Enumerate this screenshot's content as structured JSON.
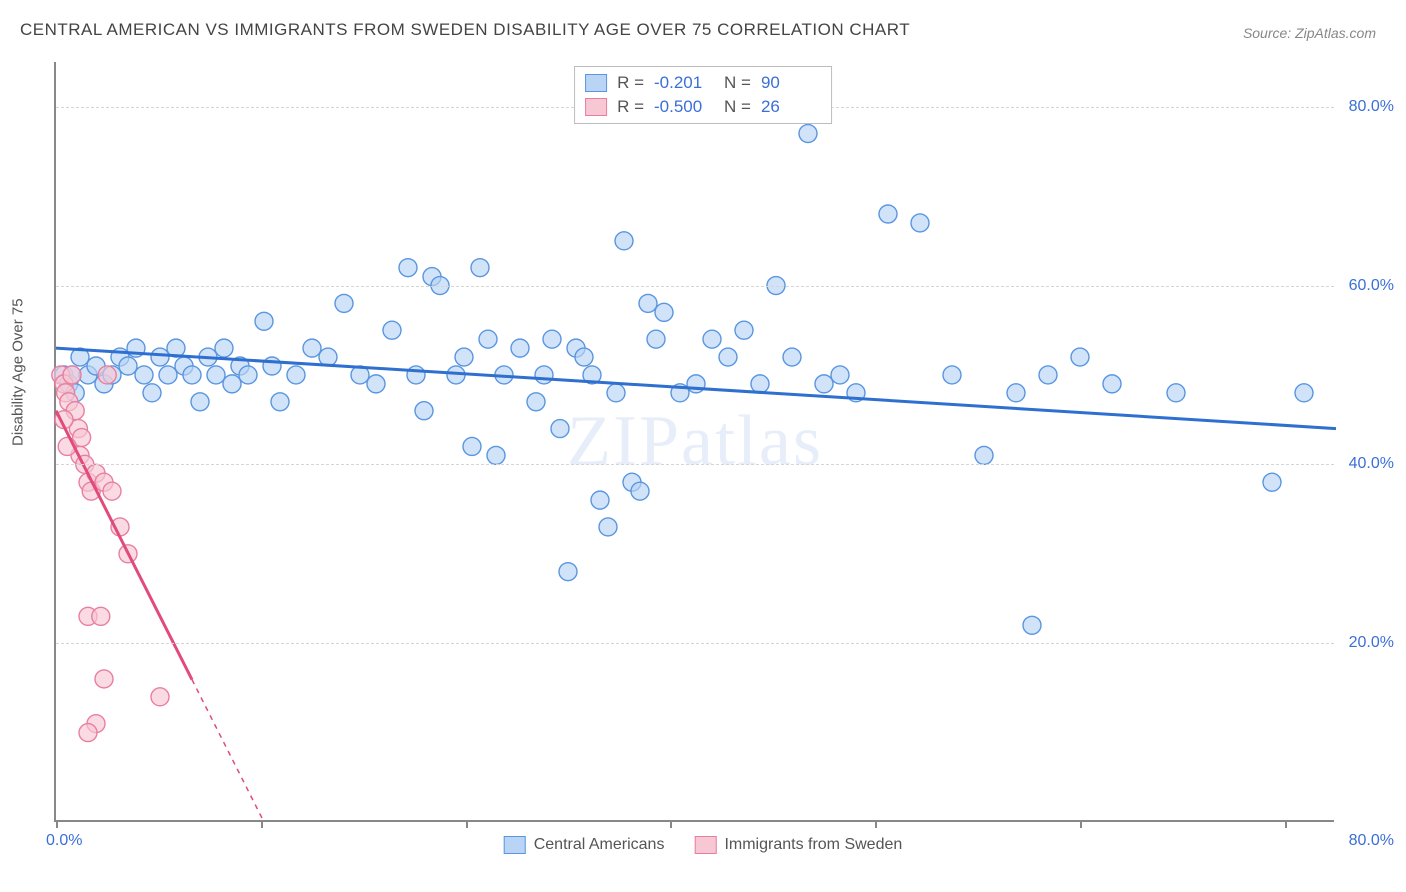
{
  "title": "CENTRAL AMERICAN VS IMMIGRANTS FROM SWEDEN DISABILITY AGE OVER 75 CORRELATION CHART",
  "source": "Source: ZipAtlas.com",
  "watermark": "ZIPatlas",
  "ylabel": "Disability Age Over 75",
  "chart": {
    "type": "scatter",
    "background_color": "#ffffff",
    "grid_color": "#d5d5d5",
    "axis_color": "#888888",
    "tick_label_color": "#3b6fd8",
    "tick_fontsize": 16,
    "title_fontsize": 17,
    "title_color": "#444444",
    "label_fontsize": 15,
    "label_color": "#555555",
    "xlim": [
      0,
      80
    ],
    "ylim": [
      0,
      85
    ],
    "ytick_values": [
      20,
      40,
      60,
      80
    ],
    "ytick_labels": [
      "20.0%",
      "40.0%",
      "60.0%",
      "80.0%"
    ],
    "xtick_positions_pct": [
      0,
      16,
      32,
      48,
      64,
      80,
      96
    ],
    "x_min_label": "0.0%",
    "x_max_label": "80.0%",
    "marker_radius": 9,
    "marker_stroke_width": 1.4,
    "regression_line_width": 3,
    "series": [
      {
        "name": "Central Americans",
        "fill": "#b9d4f5",
        "fill_opacity": 0.65,
        "stroke": "#5a96e0",
        "line_color": "#2f6fd0",
        "regression": {
          "x1": 0,
          "y1": 53,
          "x2": 80,
          "y2": 44,
          "dashed_after_x": null
        },
        "points": [
          [
            0.5,
            50
          ],
          [
            0.8,
            49
          ],
          [
            1.0,
            50
          ],
          [
            1.2,
            48
          ],
          [
            1.5,
            52
          ],
          [
            2.0,
            50
          ],
          [
            2.5,
            51
          ],
          [
            3,
            49
          ],
          [
            3.5,
            50
          ],
          [
            4,
            52
          ],
          [
            4.5,
            51
          ],
          [
            5,
            53
          ],
          [
            5.5,
            50
          ],
          [
            6,
            48
          ],
          [
            6.5,
            52
          ],
          [
            7,
            50
          ],
          [
            7.5,
            53
          ],
          [
            8,
            51
          ],
          [
            8.5,
            50
          ],
          [
            9,
            47
          ],
          [
            9.5,
            52
          ],
          [
            10,
            50
          ],
          [
            10.5,
            53
          ],
          [
            11,
            49
          ],
          [
            11.5,
            51
          ],
          [
            12,
            50
          ],
          [
            13,
            56
          ],
          [
            13.5,
            51
          ],
          [
            14,
            47
          ],
          [
            15,
            50
          ],
          [
            16,
            53
          ],
          [
            17,
            52
          ],
          [
            18,
            58
          ],
          [
            19,
            50
          ],
          [
            20,
            49
          ],
          [
            21,
            55
          ],
          [
            22,
            62
          ],
          [
            22.5,
            50
          ],
          [
            23,
            46
          ],
          [
            23.5,
            61
          ],
          [
            24,
            60
          ],
          [
            25,
            50
          ],
          [
            25.5,
            52
          ],
          [
            26,
            42
          ],
          [
            26.5,
            62
          ],
          [
            27,
            54
          ],
          [
            27.5,
            41
          ],
          [
            28,
            50
          ],
          [
            29,
            53
          ],
          [
            30,
            47
          ],
          [
            30.5,
            50
          ],
          [
            31,
            54
          ],
          [
            31.5,
            44
          ],
          [
            32,
            28
          ],
          [
            32.5,
            53
          ],
          [
            33,
            52
          ],
          [
            33.5,
            50
          ],
          [
            34,
            36
          ],
          [
            34.5,
            33
          ],
          [
            35,
            48
          ],
          [
            35.5,
            65
          ],
          [
            36,
            38
          ],
          [
            36.5,
            37
          ],
          [
            37,
            58
          ],
          [
            37.5,
            54
          ],
          [
            38,
            57
          ],
          [
            39,
            48
          ],
          [
            40,
            49
          ],
          [
            41,
            54
          ],
          [
            42,
            52
          ],
          [
            43,
            55
          ],
          [
            44,
            49
          ],
          [
            45,
            60
          ],
          [
            46,
            52
          ],
          [
            47,
            77
          ],
          [
            48,
            49
          ],
          [
            49,
            50
          ],
          [
            50,
            48
          ],
          [
            52,
            68
          ],
          [
            54,
            67
          ],
          [
            56,
            50
          ],
          [
            58,
            41
          ],
          [
            60,
            48
          ],
          [
            61,
            22
          ],
          [
            62,
            50
          ],
          [
            64,
            52
          ],
          [
            66,
            49
          ],
          [
            70,
            48
          ],
          [
            76,
            38
          ],
          [
            78,
            48
          ]
        ]
      },
      {
        "name": "Immigrants from Sweden",
        "fill": "#f7c7d4",
        "fill_opacity": 0.65,
        "stroke": "#e97fa0",
        "line_color": "#e04b7b",
        "regression": {
          "x1": 0,
          "y1": 46,
          "x2": 13,
          "y2": 0,
          "dashed_after_x": 8.5
        },
        "points": [
          [
            0.3,
            50
          ],
          [
            0.5,
            49
          ],
          [
            0.6,
            48
          ],
          [
            0.8,
            47
          ],
          [
            1.0,
            50
          ],
          [
            1.2,
            46
          ],
          [
            1.4,
            44
          ],
          [
            1.6,
            43
          ],
          [
            1.5,
            41
          ],
          [
            1.8,
            40
          ],
          [
            2.0,
            38
          ],
          [
            2.2,
            37
          ],
          [
            2.5,
            39
          ],
          [
            3.0,
            38
          ],
          [
            3.2,
            50
          ],
          [
            3.5,
            37
          ],
          [
            4.0,
            33
          ],
          [
            4.5,
            30
          ],
          [
            2.0,
            23
          ],
          [
            2.8,
            23
          ],
          [
            3.0,
            16
          ],
          [
            2.5,
            11
          ],
          [
            2.0,
            10
          ],
          [
            6.5,
            14
          ],
          [
            0.5,
            45
          ],
          [
            0.7,
            42
          ]
        ]
      }
    ]
  },
  "legend_top": {
    "border_color": "#bcbcbc",
    "rows": [
      {
        "swatch_fill": "#b9d4f5",
        "swatch_stroke": "#5a96e0",
        "r_label": "R =",
        "r_value": "-0.201",
        "n_label": "N =",
        "n_value": "90"
      },
      {
        "swatch_fill": "#f7c7d4",
        "swatch_stroke": "#e97fa0",
        "r_label": "R =",
        "r_value": "-0.500",
        "n_label": "N =",
        "n_value": "26"
      }
    ]
  },
  "legend_bottom": {
    "items": [
      {
        "swatch_fill": "#b9d4f5",
        "swatch_stroke": "#5a96e0",
        "label": "Central Americans"
      },
      {
        "swatch_fill": "#f7c7d4",
        "swatch_stroke": "#e97fa0",
        "label": "Immigrants from Sweden"
      }
    ]
  }
}
